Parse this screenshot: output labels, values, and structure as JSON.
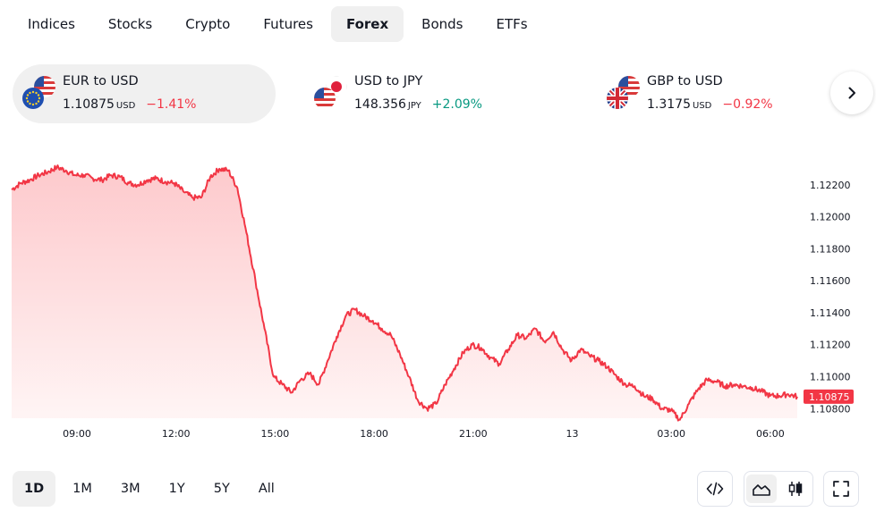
{
  "tabs": [
    {
      "label": "Indices"
    },
    {
      "label": "Stocks"
    },
    {
      "label": "Crypto"
    },
    {
      "label": "Futures"
    },
    {
      "label": "Forex",
      "active": true
    },
    {
      "label": "Bonds"
    },
    {
      "label": "ETFs"
    }
  ],
  "quotes": [
    {
      "name": "EUR to USD",
      "price": "1.10875",
      "currency": "USD",
      "change": "−1.41%",
      "direction": "down",
      "selected": true
    },
    {
      "name": "USD to JPY",
      "price": "148.356",
      "currency": "JPY",
      "change": "+2.09%",
      "direction": "up"
    },
    {
      "name": "GBP to USD",
      "price": "1.3175",
      "currency": "USD",
      "change": "−0.92%",
      "direction": "down"
    }
  ],
  "ranges": [
    {
      "label": "1D",
      "active": true
    },
    {
      "label": "1M"
    },
    {
      "label": "3M"
    },
    {
      "label": "1Y"
    },
    {
      "label": "5Y"
    },
    {
      "label": "All"
    }
  ],
  "colors": {
    "line": "#f23645",
    "area_top": "#fdc9cc",
    "area_bottom": "#fff5f5",
    "positive": "#089981",
    "negative": "#f23645"
  },
  "chart_data": {
    "type": "area",
    "series": [
      {
        "values": [
          1.1217,
          1.1221,
          1.1223,
          1.1226,
          1.1228,
          1.1231,
          1.1229,
          1.1226,
          1.1226,
          1.1224,
          1.1223,
          1.1226,
          1.1225,
          1.1221,
          1.122,
          1.1223,
          1.1224,
          1.1222,
          1.1221,
          1.1216,
          1.1212,
          1.1212,
          1.1225,
          1.123,
          1.1229,
          1.1218,
          1.119,
          1.116,
          1.113,
          1.11,
          1.1095,
          1.109,
          1.1098,
          1.1102,
          1.1095,
          1.111,
          1.1125,
          1.1138,
          1.1142,
          1.1138,
          1.1135,
          1.113,
          1.1126,
          1.1114,
          1.11,
          1.1085,
          1.108,
          1.1083,
          1.1095,
          1.1105,
          1.1115,
          1.112,
          1.1118,
          1.1112,
          1.1108,
          1.1117,
          1.1126,
          1.1124,
          1.113,
          1.1122,
          1.1128,
          1.1117,
          1.111,
          1.1117,
          1.1113,
          1.111,
          1.1106,
          1.11,
          1.1095,
          1.1094,
          1.1088,
          1.1086,
          1.108,
          1.1079,
          1.1073,
          1.1083,
          1.1092,
          1.1098,
          1.1097,
          1.1094,
          1.1095,
          1.1094,
          1.1093,
          1.1091,
          1.1088,
          1.1088,
          1.1089,
          1.10875
        ]
      }
    ],
    "x_ticks": [
      "09:00",
      "12:00",
      "15:00",
      "18:00",
      "21:00",
      "13",
      "03:00",
      "06:00"
    ],
    "y_ticks": [
      "1.12200",
      "1.12000",
      "1.11800",
      "1.11600",
      "1.11400",
      "1.11200",
      "1.11000",
      "1.10800"
    ],
    "y_tick_values": [
      1.122,
      1.12,
      1.118,
      1.116,
      1.114,
      1.112,
      1.11,
      1.108
    ],
    "ylim": [
      1.1074,
      1.1235
    ],
    "last_value_label": "1.10875",
    "grid": false
  }
}
